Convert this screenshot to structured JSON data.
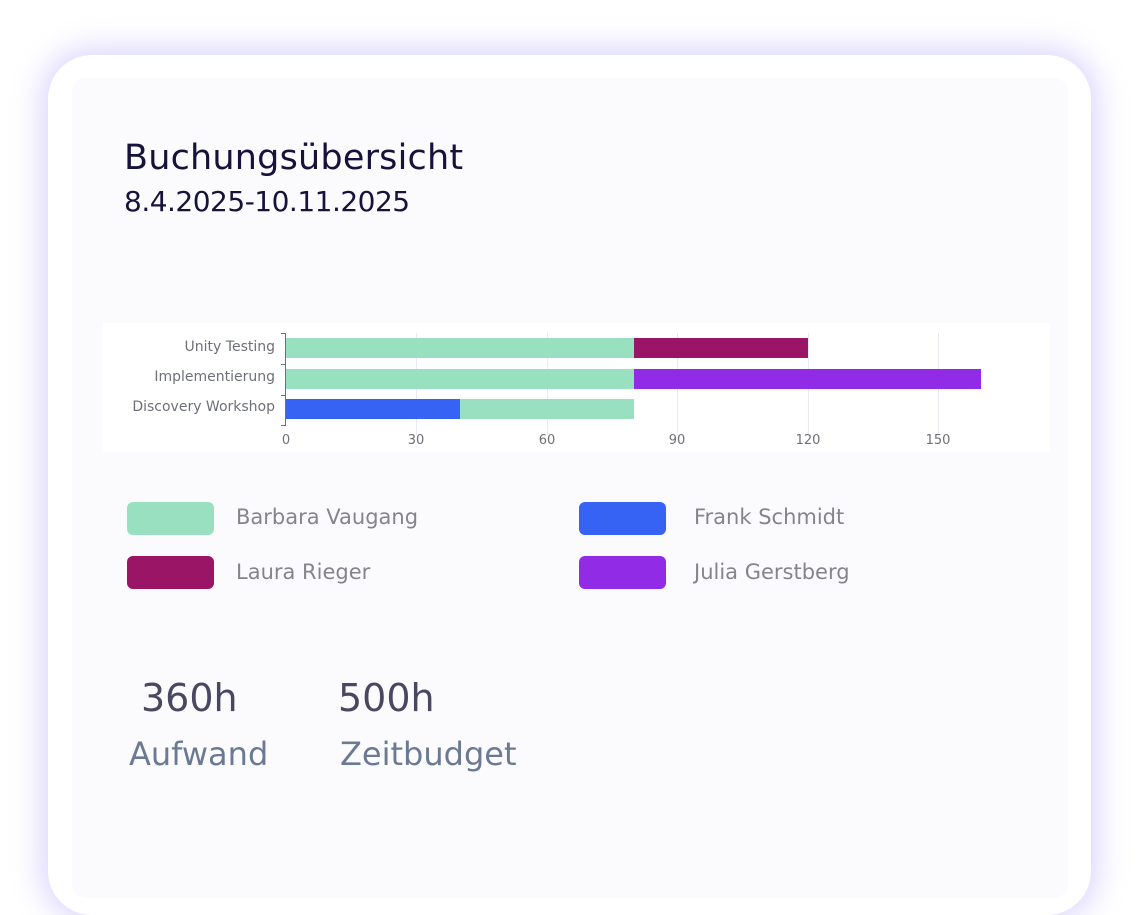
{
  "header": {
    "title": "Buchungsübersicht",
    "date_range": "8.4.2025-10.11.2025"
  },
  "chart_data": {
    "type": "bar",
    "orientation": "horizontal",
    "stacked": true,
    "title": "",
    "xlabel": "",
    "ylabel": "",
    "categories": [
      "Unity Testing",
      "Implementierung",
      "Discovery Workshop"
    ],
    "x_ticks": [
      "0",
      "30",
      "60",
      "90",
      "120",
      "150"
    ],
    "xlim": [
      0,
      160
    ],
    "grid": true,
    "series": [
      {
        "name": "Barbara Vaugang",
        "color": "#98e0c0",
        "values": [
          80,
          80,
          40
        ]
      },
      {
        "name": "Frank Schmidt",
        "color": "#3763f4",
        "values": [
          0,
          0,
          40
        ]
      },
      {
        "name": "Laura Rieger",
        "color": "#9b1566",
        "values": [
          40,
          0,
          0
        ]
      },
      {
        "name": "Julia Gerstberg",
        "color": "#922be6",
        "values": [
          0,
          80,
          0
        ]
      }
    ],
    "segments": [
      {
        "category": "Unity Testing",
        "name": "Barbara Vaugang",
        "start": 0,
        "end": 80
      },
      {
        "category": "Unity Testing",
        "name": "Laura Rieger",
        "start": 80,
        "end": 120
      },
      {
        "category": "Implementierung",
        "name": "Barbara Vaugang",
        "start": 0,
        "end": 80
      },
      {
        "category": "Implementierung",
        "name": "Julia Gerstberg",
        "start": 80,
        "end": 160
      },
      {
        "category": "Discovery Workshop",
        "name": "Frank Schmidt",
        "start": 0,
        "end": 40
      },
      {
        "category": "Discovery Workshop",
        "name": "Barbara Vaugang",
        "start": 40,
        "end": 80
      }
    ]
  },
  "legend": [
    {
      "label": "Barbara Vaugang",
      "color": "#98e0c0"
    },
    {
      "label": "Frank Schmidt",
      "color": "#3763f4"
    },
    {
      "label": "Laura Rieger",
      "color": "#9b1566"
    },
    {
      "label": "Julia Gerstberg",
      "color": "#922be6"
    }
  ],
  "stats": {
    "effort_value": "360h",
    "effort_label": "Aufwand",
    "budget_value": "500h",
    "budget_label": "Zeitbudget"
  }
}
